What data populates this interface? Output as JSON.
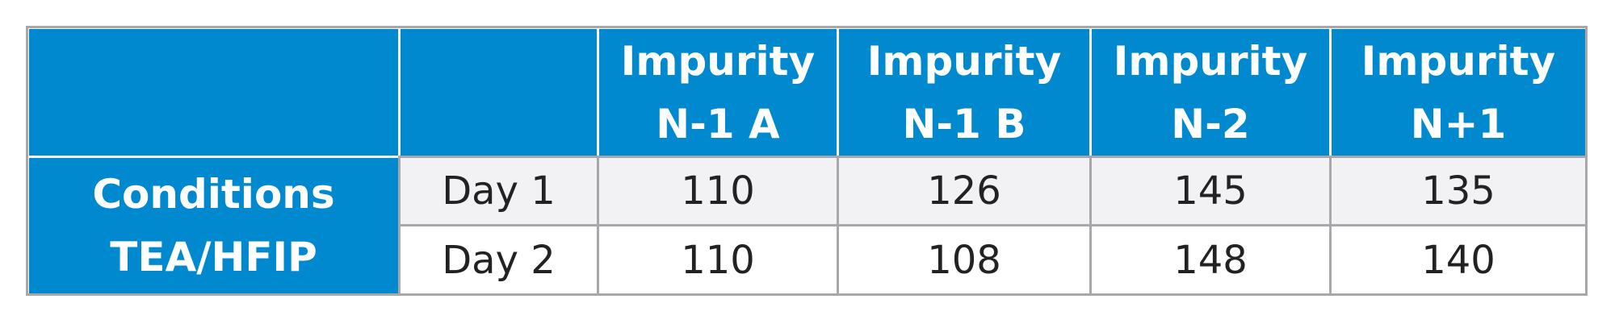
{
  "table": {
    "header": [
      "Impurity\nN-1 A",
      "Impurity\nN-1 B",
      "Impurity\nN-2",
      "Impurity\nN+1"
    ],
    "row_group": "Conditions\nTEA/HFIP",
    "rows": [
      {
        "label": "Day 1",
        "values": [
          110,
          126,
          145,
          135
        ]
      },
      {
        "label": "Day 2",
        "values": [
          110,
          108,
          148,
          140
        ]
      }
    ]
  }
}
